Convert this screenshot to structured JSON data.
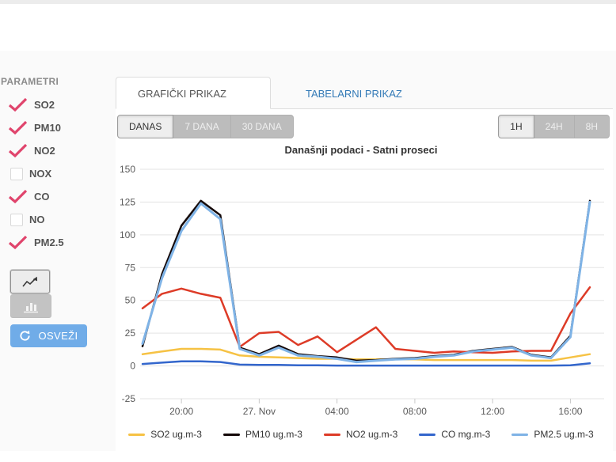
{
  "sidebar": {
    "title": "PARAMETRI",
    "parameters": [
      {
        "label": "SO2",
        "checked": true
      },
      {
        "label": "PM10",
        "checked": true
      },
      {
        "label": "NO2",
        "checked": true
      },
      {
        "label": "NOX",
        "checked": false
      },
      {
        "label": "CO",
        "checked": true
      },
      {
        "label": "NO",
        "checked": false
      },
      {
        "label": "PM2.5",
        "checked": true
      }
    ],
    "check_color": "#e0446c",
    "chart_type_buttons": [
      {
        "name": "line-chart",
        "active": true
      },
      {
        "name": "bar-chart",
        "active": false
      }
    ],
    "refresh_label": "OSVEŽI",
    "refresh_color": "#70ace8"
  },
  "tabs": [
    {
      "label": "GRAFIČKI PRIKAZ",
      "active": true
    },
    {
      "label": "TABELARNI PRIKAZ",
      "active": false
    }
  ],
  "period_buttons": {
    "left": [
      {
        "label": "DANAS",
        "active": true
      },
      {
        "label": "7 DANA",
        "active": false
      },
      {
        "label": "30 DANA",
        "active": false
      }
    ],
    "right": [
      {
        "label": "1H",
        "active": true
      },
      {
        "label": "24H",
        "active": false
      },
      {
        "label": "8H",
        "active": false
      }
    ]
  },
  "chart_data": {
    "type": "line",
    "title": "Današnji podaci - Satni proseci",
    "x": [
      "18:00",
      "19:00",
      "20:00",
      "21:00",
      "22:00",
      "23:00",
      "00:00",
      "01:00",
      "02:00",
      "03:00",
      "04:00",
      "05:00",
      "06:00",
      "07:00",
      "08:00",
      "09:00",
      "10:00",
      "11:00",
      "12:00",
      "13:00",
      "14:00",
      "15:00",
      "16:00",
      "17:00"
    ],
    "x_tick_labels": [
      {
        "label": "20:00",
        "index": 2
      },
      {
        "label": "27. Nov",
        "index": 6
      },
      {
        "label": "04:00",
        "index": 10
      },
      {
        "label": "08:00",
        "index": 14
      },
      {
        "label": "12:00",
        "index": 18
      },
      {
        "label": "16:00",
        "index": 22
      }
    ],
    "ylim": [
      -25,
      150
    ],
    "y_ticks": [
      150,
      125,
      100,
      75,
      50,
      25,
      0,
      -25
    ],
    "grid": true,
    "legend_position": "bottom",
    "series": [
      {
        "name": "SO2 ug.m-3",
        "color": "#f6c244",
        "width": 2.5,
        "values": [
          9,
          11,
          13,
          13,
          12.5,
          8,
          7,
          6.5,
          6,
          5.5,
          5.5,
          5,
          5,
          5,
          5,
          4.5,
          4.5,
          4.5,
          4.5,
          4.5,
          4,
          4,
          6.5,
          9
        ]
      },
      {
        "name": "PM10 ug.m-3",
        "color": "#140808",
        "width": 2.5,
        "values": [
          15,
          70,
          107,
          126,
          115,
          14,
          9,
          15.5,
          9,
          7.5,
          6.5,
          4,
          4.5,
          5.5,
          6,
          7.5,
          8.5,
          11.5,
          13,
          14.5,
          8.5,
          6.5,
          23,
          126
        ]
      },
      {
        "name": "NO2 ug.m-3",
        "color": "#dd3b27",
        "width": 2.5,
        "values": [
          44,
          55,
          59,
          55,
          52,
          14.5,
          25,
          26,
          16,
          22.5,
          10.5,
          20,
          29.5,
          13,
          11.5,
          10,
          11,
          10.5,
          10,
          11,
          11.5,
          11.5,
          40,
          60
        ]
      },
      {
        "name": "CO mg.m-3",
        "color": "#3366cc",
        "width": 2.5,
        "values": [
          1.5,
          2.5,
          3.5,
          3.5,
          3,
          1,
          0.8,
          0.8,
          0.5,
          0.5,
          0.3,
          0.3,
          0.3,
          0.3,
          0.3,
          0.3,
          0.3,
          0.3,
          0.3,
          0.3,
          0.3,
          0.3,
          0.5,
          2
        ]
      },
      {
        "name": "PM2.5 ug.m-3",
        "color": "#7fb3e6",
        "width": 3,
        "values": [
          17,
          67,
          103,
          124,
          112,
          13,
          8,
          14,
          8,
          7,
          5.5,
          3,
          4,
          5,
          5.5,
          7,
          8,
          11,
          12.5,
          14,
          8,
          6,
          22,
          125
        ]
      }
    ]
  }
}
